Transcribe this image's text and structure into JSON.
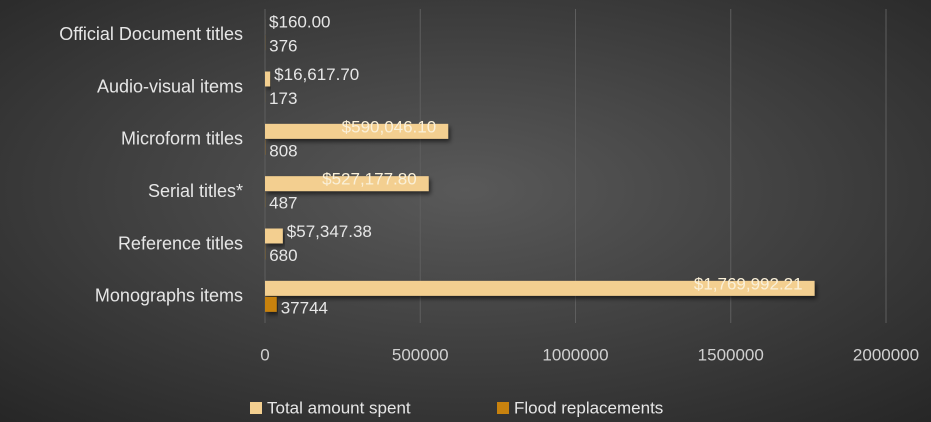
{
  "chart_data": {
    "type": "hbar",
    "categories": [
      "Official Document titles",
      "Audio-visual items",
      "Microform titles",
      "Serial titles*",
      "Reference titles",
      "Monographs items"
    ],
    "series": [
      {
        "name": "Total amount spent",
        "color": "#f3cf90",
        "values": [
          160,
          16617.7,
          590046.1,
          527177.8,
          57347.38,
          1769992.21
        ],
        "value_labels": [
          "$160.00",
          "$16,617.70",
          "$590,046.10",
          "$527,177.80",
          "$57,347.38",
          "$1,769,992.21"
        ]
      },
      {
        "name": "Flood replacements",
        "color": "#c8820e",
        "values": [
          376,
          173,
          808,
          487,
          680,
          37744
        ]
      }
    ],
    "xlim": [
      0,
      2000000
    ],
    "xticks": [
      0,
      500000,
      1000000,
      1500000,
      2000000
    ],
    "grid": true,
    "legend": "bottom"
  }
}
